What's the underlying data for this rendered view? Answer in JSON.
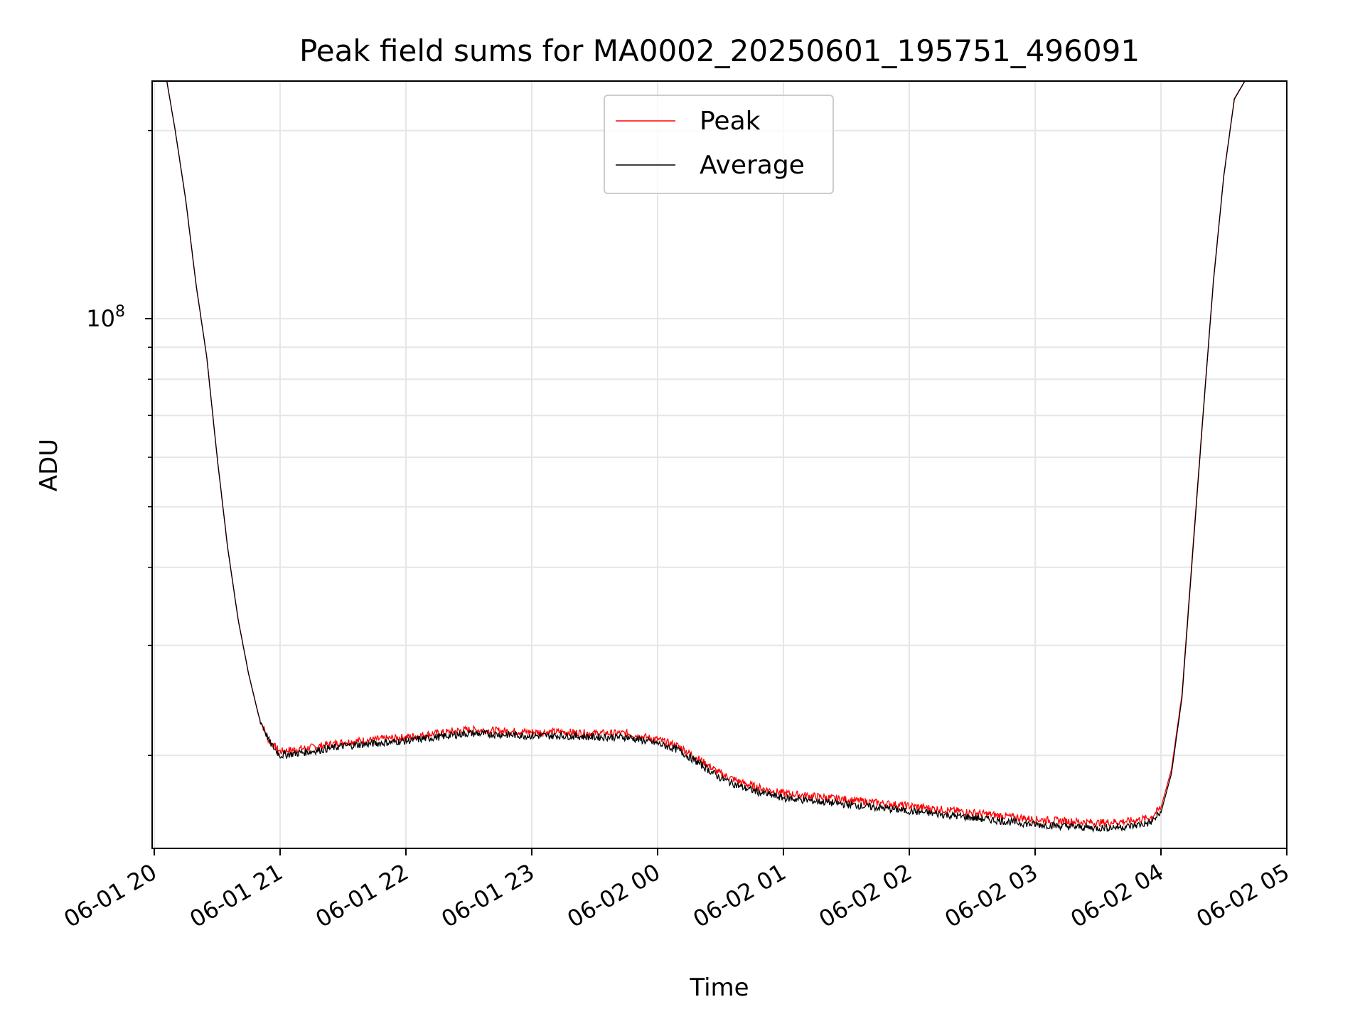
{
  "chart_data": {
    "type": "line",
    "title": "Peak field sums for MA0002_20250601_195751_496091",
    "xlabel": "Time",
    "ylabel": "ADU",
    "x_tick_labels": [
      "06-01 20",
      "06-01 21",
      "06-01 22",
      "06-01 23",
      "06-02 00",
      "06-02 01",
      "06-02 02",
      "06-02 03",
      "06-02 04",
      "06-02 05"
    ],
    "xlim": [
      "2025-06-01 19:59",
      "2025-06-02 05:00"
    ],
    "y_scale": "log",
    "ylim": [
      14200000,
      240000000
    ],
    "y_tick_labels": [
      {
        "base": "10",
        "exp": "8",
        "value": 100000000
      }
    ],
    "y_minor_ticks": [
      20000000,
      30000000,
      40000000,
      50000000,
      60000000,
      70000000,
      80000000,
      90000000,
      200000000
    ],
    "grid": true,
    "legend": {
      "position": "upper center"
    },
    "series": [
      {
        "name": "Peak",
        "color": "#ff0000",
        "x": [
          "2025-06-01 20:06",
          "2025-06-01 20:10",
          "2025-06-01 20:15",
          "2025-06-01 20:20",
          "2025-06-01 20:25",
          "2025-06-01 20:30",
          "2025-06-01 20:35",
          "2025-06-01 20:40",
          "2025-06-01 20:45",
          "2025-06-01 20:50",
          "2025-06-01 20:55",
          "2025-06-01 21:00",
          "2025-06-01 21:15",
          "2025-06-01 21:30",
          "2025-06-01 21:45",
          "2025-06-01 22:00",
          "2025-06-01 22:15",
          "2025-06-01 22:30",
          "2025-06-01 22:45",
          "2025-06-01 23:00",
          "2025-06-01 23:15",
          "2025-06-01 23:30",
          "2025-06-01 23:45",
          "2025-06-02 00:00",
          "2025-06-02 00:10",
          "2025-06-02 00:20",
          "2025-06-02 00:30",
          "2025-06-02 00:40",
          "2025-06-02 00:50",
          "2025-06-02 01:00",
          "2025-06-02 01:15",
          "2025-06-02 01:30",
          "2025-06-02 01:45",
          "2025-06-02 02:00",
          "2025-06-02 02:15",
          "2025-06-02 02:30",
          "2025-06-02 02:45",
          "2025-06-02 03:00",
          "2025-06-02 03:15",
          "2025-06-02 03:30",
          "2025-06-02 03:45",
          "2025-06-02 03:55",
          "2025-06-02 04:00",
          "2025-06-02 04:05",
          "2025-06-02 04:10",
          "2025-06-02 04:15",
          "2025-06-02 04:20",
          "2025-06-02 04:25",
          "2025-06-02 04:30",
          "2025-06-02 04:35",
          "2025-06-02 04:40",
          "2025-06-02 04:45",
          "2025-06-02 04:50",
          "2025-06-02 05:00"
        ],
        "values": [
          240000000,
          200000000,
          155000000,
          113000000,
          87000000,
          60000000,
          43000000,
          33000000,
          27000000,
          23000000,
          21000000,
          20300000,
          20600000,
          21000000,
          21200000,
          21400000,
          21700000,
          22000000,
          21900000,
          21800000,
          21800000,
          21700000,
          21700000,
          21200000,
          20700000,
          19700000,
          18700000,
          18100000,
          17700000,
          17400000,
          17200000,
          17000000,
          16800000,
          16600000,
          16400000,
          16200000,
          16000000,
          15800000,
          15700000,
          15600000,
          15700000,
          15900000,
          16500000,
          19000000,
          25000000,
          42000000,
          70000000,
          115000000,
          170000000,
          225000000,
          240000000,
          240000000,
          240000000,
          240000000
        ]
      },
      {
        "name": "Average",
        "color": "#000000",
        "x": [
          "2025-06-01 20:06",
          "2025-06-01 20:10",
          "2025-06-01 20:15",
          "2025-06-01 20:20",
          "2025-06-01 20:25",
          "2025-06-01 20:30",
          "2025-06-01 20:35",
          "2025-06-01 20:40",
          "2025-06-01 20:45",
          "2025-06-01 20:50",
          "2025-06-01 20:55",
          "2025-06-01 21:00",
          "2025-06-01 21:15",
          "2025-06-01 21:30",
          "2025-06-01 21:45",
          "2025-06-01 22:00",
          "2025-06-01 22:15",
          "2025-06-01 22:30",
          "2025-06-01 22:45",
          "2025-06-01 23:00",
          "2025-06-01 23:15",
          "2025-06-01 23:30",
          "2025-06-01 23:45",
          "2025-06-02 00:00",
          "2025-06-02 00:10",
          "2025-06-02 00:20",
          "2025-06-02 00:30",
          "2025-06-02 00:40",
          "2025-06-02 00:50",
          "2025-06-02 01:00",
          "2025-06-02 01:15",
          "2025-06-02 01:30",
          "2025-06-02 01:45",
          "2025-06-02 02:00",
          "2025-06-02 02:15",
          "2025-06-02 02:30",
          "2025-06-02 02:45",
          "2025-06-02 03:00",
          "2025-06-02 03:15",
          "2025-06-02 03:30",
          "2025-06-02 03:45",
          "2025-06-02 03:55",
          "2025-06-02 04:00",
          "2025-06-02 04:05",
          "2025-06-02 04:10",
          "2025-06-02 04:15",
          "2025-06-02 04:20",
          "2025-06-02 04:25",
          "2025-06-02 04:30",
          "2025-06-02 04:35",
          "2025-06-02 04:40",
          "2025-06-02 04:45",
          "2025-06-02 04:50",
          "2025-06-02 05:00"
        ],
        "values": [
          240000000,
          200000000,
          155000000,
          113000000,
          87000000,
          60000000,
          43000000,
          33000000,
          27000000,
          23000000,
          21000000,
          20000000,
          20300000,
          20700000,
          20900000,
          21100000,
          21400000,
          21700000,
          21600000,
          21500000,
          21500000,
          21400000,
          21400000,
          20900000,
          20400000,
          19400000,
          18400000,
          17800000,
          17400000,
          17100000,
          16900000,
          16700000,
          16500000,
          16300000,
          16100000,
          15900000,
          15700000,
          15500000,
          15400000,
          15300000,
          15400000,
          15600000,
          16200000,
          18700000,
          24700000,
          41500000,
          69500000,
          114500000,
          169500000,
          224500000,
          240000000,
          240000000,
          240000000,
          240000000
        ]
      }
    ]
  }
}
